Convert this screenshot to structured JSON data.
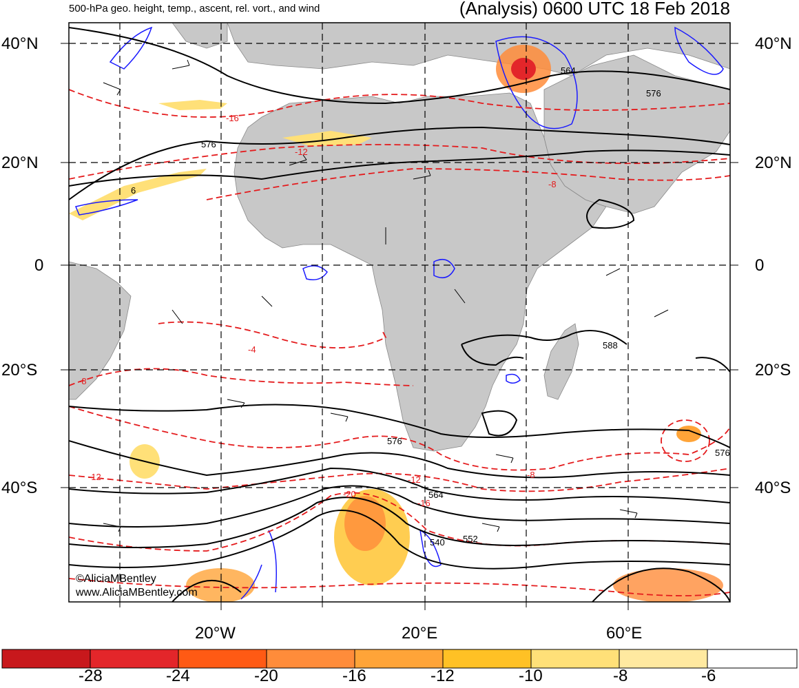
{
  "header": {
    "title_left": "500-hPa geo. height, temp., ascent, rel. vort., and wind",
    "title_right": "(Analysis) 0600 UTC 18 Feb 2018"
  },
  "lat_labels": [
    "40°N",
    "20°N",
    "0",
    "20°S",
    "40°S"
  ],
  "lon_labels": [
    "20°W",
    "20°E",
    "60°E"
  ],
  "contour_labels": {
    "height": [
      "576",
      "576",
      "564",
      "576",
      "588",
      "576",
      "564",
      "552",
      "540",
      "6"
    ],
    "temperature": [
      "-16",
      "-12",
      "-8",
      "-4",
      "-8",
      "-12",
      "-12",
      "-16",
      "-20",
      "-8"
    ]
  },
  "watermark": {
    "line1": "©AliciaMBentley",
    "line2": "www.AliciaMBentley.com"
  },
  "colorbar": {
    "tick_labels": [
      "-28",
      "-24",
      "-20",
      "-16",
      "-12",
      "-10",
      "-8",
      "-6"
    ],
    "colors": [
      "#c8181c",
      "#e3262a",
      "#ff5a14",
      "#ff8c3a",
      "#ffa438",
      "#ffc125",
      "#ffe078",
      "#ffffff"
    ]
  },
  "colors": {
    "land": "#c8c8c8",
    "height_contour": "#000000",
    "temp_contour": "#e41a1c",
    "vorticity": "#1a1aff"
  }
}
